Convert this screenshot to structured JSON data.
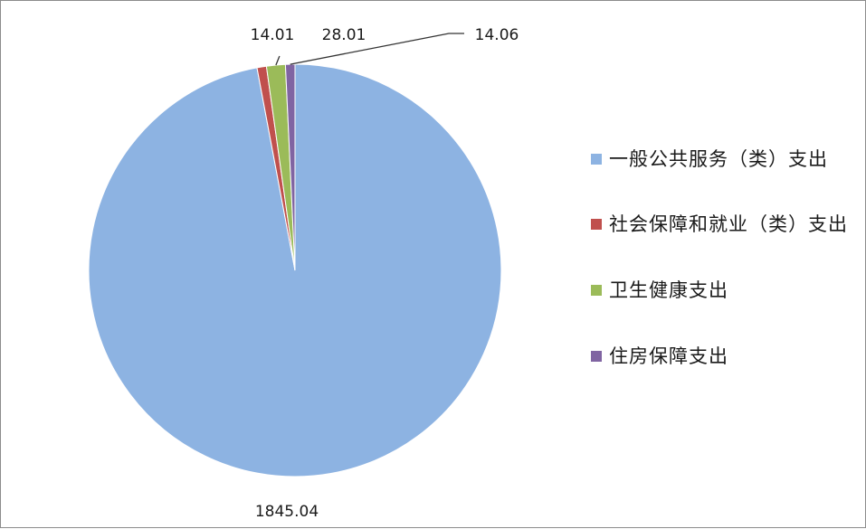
{
  "chart_data": {
    "type": "pie",
    "slices": [
      {
        "label": "一般公共服务（类）支出",
        "value": 1845.04,
        "value_label": "1845.04",
        "color": "#8db3e2"
      },
      {
        "label": "社会保障和就业（类）支出",
        "value": 14.01,
        "value_label": "14.01",
        "color": "#c0504d"
      },
      {
        "label": "卫生健康支出",
        "value": 28.01,
        "value_label": "28.01",
        "color": "#9bbb59"
      },
      {
        "label": "住房保障支出",
        "value": 14.06,
        "value_label": "14.06",
        "color": "#8064a2"
      }
    ],
    "start_angle_deg": 0,
    "direction": "clockwise",
    "legend_position": "right",
    "slice_border_color": "#ffffff"
  }
}
